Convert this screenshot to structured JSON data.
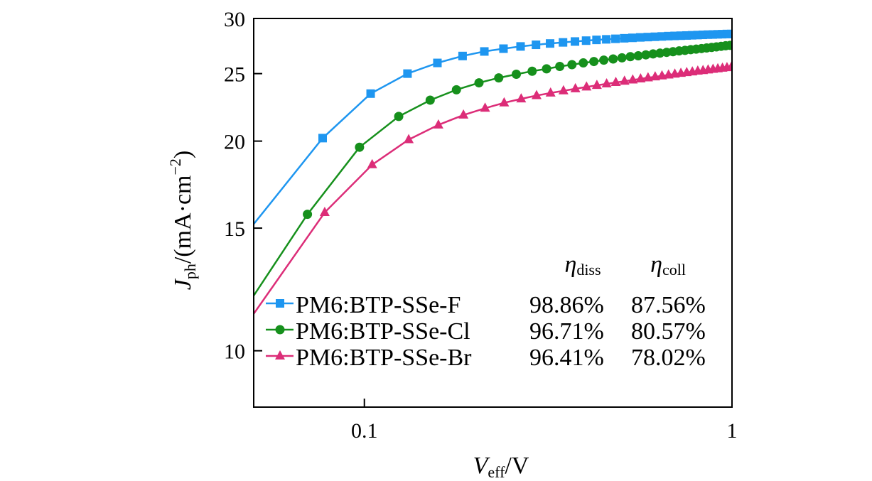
{
  "chart_data": {
    "type": "line",
    "x_scale": "log",
    "y_scale": "log",
    "xlabel": {
      "main": "V",
      "sub": "eff",
      "unit": "/V"
    },
    "ylabel": {
      "main": "J",
      "sub": "ph",
      "unit_pre": "/(mA·cm",
      "sup": "−2",
      "unit_post": ")"
    },
    "xlim": [
      0.05,
      1
    ],
    "ylim": [
      8.3,
      30
    ],
    "x_ticks": [
      {
        "value": 0.1,
        "label": "0.1"
      },
      {
        "value": 1,
        "label": "1"
      }
    ],
    "y_ticks": [
      {
        "value": 10,
        "label": "10"
      },
      {
        "value": 15,
        "label": "15"
      },
      {
        "value": 20,
        "label": "20"
      },
      {
        "value": 25,
        "label": "25"
      },
      {
        "value": 30,
        "label": "30"
      }
    ],
    "legend_header": [
      {
        "main": "η",
        "sub": "diss"
      },
      {
        "main": "η",
        "sub": "coll"
      }
    ],
    "series": [
      {
        "name": "PM6:BTP-SSe-F",
        "eta_diss": "98.86%",
        "eta_coll": "87.56%",
        "color": "#1e96f0",
        "marker": "square",
        "x": [
          0.05,
          0.077,
          0.104,
          0.131,
          0.158,
          0.185,
          0.212,
          0.239,
          0.266,
          0.293,
          0.32,
          0.347,
          0.374,
          0.401,
          0.428,
          0.455,
          0.482,
          0.509,
          0.536,
          0.563,
          0.59,
          0.617,
          0.644,
          0.671,
          0.698,
          0.725,
          0.752,
          0.779,
          0.806,
          0.833,
          0.86,
          0.887,
          0.914,
          0.941,
          0.968,
          0.995
        ],
        "y": [
          15.2,
          20.2,
          23.4,
          25.0,
          25.9,
          26.5,
          26.9,
          27.15,
          27.35,
          27.5,
          27.62,
          27.72,
          27.8,
          27.88,
          27.95,
          28.0,
          28.05,
          28.1,
          28.14,
          28.18,
          28.21,
          28.24,
          28.27,
          28.3,
          28.32,
          28.34,
          28.36,
          28.38,
          28.4,
          28.42,
          28.44,
          28.45,
          28.47,
          28.48,
          28.5,
          28.5
        ]
      },
      {
        "name": "PM6:BTP-SSe-Cl",
        "eta_diss": "96.71%",
        "eta_coll": "80.57%",
        "color": "#16901c",
        "marker": "circle",
        "x": [
          0.05,
          0.07,
          0.097,
          0.124,
          0.151,
          0.178,
          0.205,
          0.232,
          0.259,
          0.286,
          0.313,
          0.34,
          0.367,
          0.394,
          0.421,
          0.448,
          0.475,
          0.502,
          0.529,
          0.556,
          0.583,
          0.61,
          0.637,
          0.664,
          0.691,
          0.718,
          0.745,
          0.772,
          0.799,
          0.826,
          0.853,
          0.88,
          0.907,
          0.934,
          0.961,
          0.988
        ],
        "y": [
          12.0,
          15.7,
          19.6,
          21.7,
          22.9,
          23.7,
          24.25,
          24.65,
          24.95,
          25.2,
          25.4,
          25.6,
          25.75,
          25.9,
          26.02,
          26.14,
          26.24,
          26.34,
          26.44,
          26.52,
          26.6,
          26.68,
          26.75,
          26.82,
          26.88,
          26.95,
          27.0,
          27.06,
          27.11,
          27.16,
          27.21,
          27.26,
          27.31,
          27.36,
          27.41,
          27.45
        ]
      },
      {
        "name": "PM6:BTP-SSe-Br",
        "eta_diss": "96.41%",
        "eta_coll": "78.02%",
        "color": "#dc2d78",
        "marker": "triangle",
        "x": [
          0.05,
          0.078,
          0.105,
          0.132,
          0.159,
          0.186,
          0.213,
          0.24,
          0.267,
          0.294,
          0.321,
          0.348,
          0.375,
          0.402,
          0.429,
          0.456,
          0.483,
          0.51,
          0.537,
          0.564,
          0.591,
          0.618,
          0.645,
          0.672,
          0.699,
          0.726,
          0.753,
          0.78,
          0.807,
          0.834,
          0.861,
          0.888,
          0.915,
          0.942,
          0.969,
          0.996
        ],
        "y": [
          11.3,
          15.8,
          18.5,
          20.1,
          21.1,
          21.8,
          22.3,
          22.7,
          23.0,
          23.25,
          23.45,
          23.62,
          23.78,
          23.92,
          24.05,
          24.17,
          24.28,
          24.38,
          24.48,
          24.57,
          24.66,
          24.74,
          24.82,
          24.89,
          24.96,
          25.03,
          25.09,
          25.15,
          25.21,
          25.26,
          25.31,
          25.36,
          25.41,
          25.46,
          25.5,
          25.55
        ]
      }
    ]
  }
}
